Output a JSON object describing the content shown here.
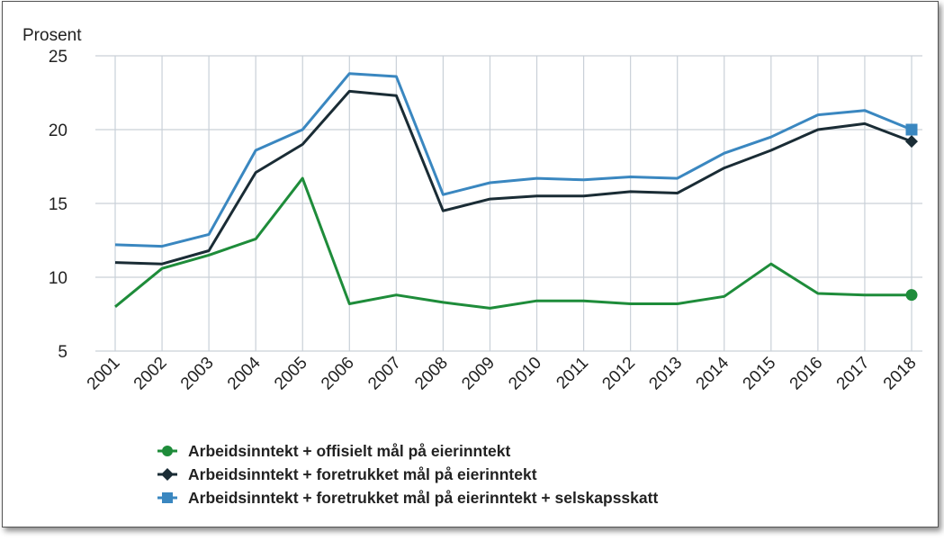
{
  "chart_data": {
    "type": "line",
    "title": "",
    "ylabel": "Prosent",
    "xlabel": "",
    "ylim": [
      5,
      25
    ],
    "yticks": [
      5,
      10,
      15,
      20,
      25
    ],
    "grid": true,
    "legend_position": "bottom",
    "categories": [
      "2001",
      "2002",
      "2003",
      "2004",
      "2005",
      "2006",
      "2007",
      "2008",
      "2009",
      "2010",
      "2011",
      "2012",
      "2013",
      "2014",
      "2015",
      "2016",
      "2017",
      "2018"
    ],
    "series": [
      {
        "name": "Arbeidsinntekt + offisielt mål på eierinntekt",
        "color": "#1e8c3a",
        "marker": "circle",
        "values": [
          8.0,
          10.6,
          11.5,
          12.6,
          16.7,
          8.2,
          8.8,
          8.3,
          7.9,
          8.4,
          8.4,
          8.2,
          8.2,
          8.7,
          10.9,
          8.9,
          8.8,
          8.8
        ]
      },
      {
        "name": "Arbeidsinntekt + foretrukket mål på eierinntekt",
        "color": "#1a2c35",
        "marker": "diamond",
        "values": [
          11.0,
          10.9,
          11.8,
          17.1,
          19.0,
          22.6,
          22.3,
          14.5,
          15.3,
          15.5,
          15.5,
          15.8,
          15.7,
          17.4,
          18.6,
          20.0,
          20.4,
          19.2
        ]
      },
      {
        "name": "Arbeidsinntekt + foretrukket mål på eierinntekt + selskapsskatt",
        "color": "#3a87c0",
        "marker": "square",
        "values": [
          12.2,
          12.1,
          12.9,
          18.6,
          20.0,
          23.8,
          23.6,
          15.6,
          16.4,
          16.7,
          16.6,
          16.8,
          16.7,
          18.4,
          19.5,
          21.0,
          21.3,
          20.0
        ]
      }
    ]
  }
}
